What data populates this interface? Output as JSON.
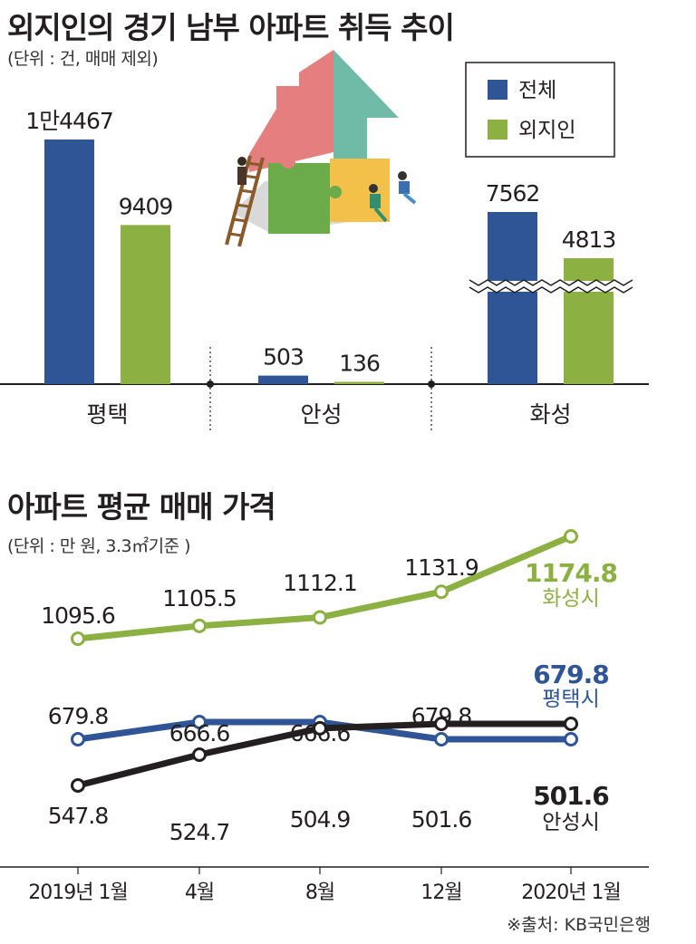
{
  "chart_data": [
    {
      "type": "bar",
      "title": "외지인의 경기 남부 아파트 취득 추이",
      "subtitle": "(단위 : 건, 매매 제외)",
      "categories": [
        "평택",
        "안성",
        "화성"
      ],
      "series": [
        {
          "name": "전체",
          "color": "#2f5597",
          "values": [
            14467,
            503,
            7562
          ],
          "value_labels": [
            "1만4467",
            "503",
            "7562"
          ]
        },
        {
          "name": "외지인",
          "color": "#8db043",
          "values": [
            9409,
            136,
            4813
          ],
          "value_labels": [
            "9409",
            "136",
            "4813"
          ]
        }
      ],
      "legend_position": "top-right",
      "axis_break_on": "화성"
    },
    {
      "type": "line",
      "title": "아파트 평균 매매 가격",
      "subtitle": "(단위 : 만 원, 3.3㎡기준 )",
      "x": [
        "2019년 1월",
        "4월",
        "8월",
        "12월",
        "2020년 1월"
      ],
      "series": [
        {
          "name": "화성시",
          "color": "#8db043",
          "values": [
            1095.6,
            1105.5,
            1112.1,
            1131.9,
            1174.8
          ],
          "labels": [
            "1095.6",
            "1105.5",
            "1112.1",
            "1131.9",
            "1174.8"
          ]
        },
        {
          "name": "평택시",
          "color": "#2f5597",
          "values": [
            679.8,
            666.6,
            666.6,
            679.8,
            679.8
          ],
          "labels": [
            "679.8",
            "666.6",
            "666.6",
            "679.8",
            "679.8"
          ]
        },
        {
          "name": "안성시",
          "color": "#231f20",
          "values": [
            547.8,
            524.7,
            504.9,
            501.6,
            501.6
          ],
          "labels": [
            "547.8",
            "524.7",
            "504.9",
            "501.6",
            "501.6"
          ]
        }
      ]
    }
  ],
  "source": "※출처: KB국민은행"
}
